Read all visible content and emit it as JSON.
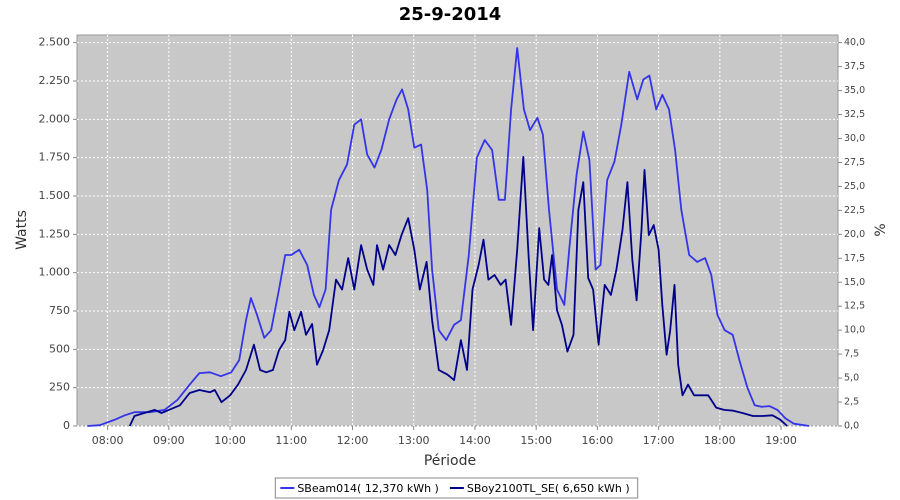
{
  "chart_data": {
    "type": "line",
    "title": "25-9-2014",
    "x_label": "Période",
    "y_label": "Watts",
    "y2_label": "%",
    "xlim": [
      7.5,
      19.93
    ],
    "xticks": [
      {
        "value": 8,
        "label": "08:00"
      },
      {
        "value": 9,
        "label": "09:00"
      },
      {
        "value": 10,
        "label": "10:00"
      },
      {
        "value": 11,
        "label": "11:00"
      },
      {
        "value": 12,
        "label": "12:00"
      },
      {
        "value": 13,
        "label": "13:00"
      },
      {
        "value": 14,
        "label": "14:00"
      },
      {
        "value": 15,
        "label": "15:00"
      },
      {
        "value": 16,
        "label": "16:00"
      },
      {
        "value": 17,
        "label": "17:00"
      },
      {
        "value": 18,
        "label": "18:00"
      },
      {
        "value": 19,
        "label": "19:00"
      }
    ],
    "ylim": [
      0,
      2550
    ],
    "yticks": [
      0,
      250,
      500,
      750,
      {
        "value": 1000,
        "label": "1.000"
      },
      {
        "value": 1250,
        "label": "1.250"
      },
      {
        "value": 1500,
        "label": "1.500"
      },
      {
        "value": 1750,
        "label": "1.750"
      },
      {
        "value": 2000,
        "label": "2.000"
      },
      {
        "value": 2250,
        "label": "2.250"
      },
      {
        "value": 2500,
        "label": "2.500"
      }
    ],
    "y2lim": [
      0,
      40.8
    ],
    "y2ticks": [
      {
        "value": 0,
        "label": "0,0"
      },
      {
        "value": 2.5,
        "label": "2,5"
      },
      {
        "value": 5,
        "label": "5,0"
      },
      {
        "value": 7.5,
        "label": "7,5"
      },
      {
        "value": 10,
        "label": "10,0"
      },
      {
        "value": 12.5,
        "label": "12,5"
      },
      {
        "value": 15,
        "label": "15,0"
      },
      {
        "value": 17.5,
        "label": "17,5"
      },
      {
        "value": 20,
        "label": "20,0"
      },
      {
        "value": 22.5,
        "label": "22,5"
      },
      {
        "value": 25,
        "label": "25,0"
      },
      {
        "value": 27.5,
        "label": "27,5"
      },
      {
        "value": 30,
        "label": "30,0"
      },
      {
        "value": 32.5,
        "label": "32,5"
      },
      {
        "value": 35,
        "label": "35,0"
      },
      {
        "value": 37.5,
        "label": "37,5"
      },
      {
        "value": 40,
        "label": "40,0"
      }
    ],
    "grid": true,
    "legend": "bottom",
    "series": [
      {
        "name": "SBeam014( 12,370 kWh )",
        "color": "#3434e8",
        "x": [
          7.67,
          7.87,
          8.11,
          8.28,
          8.44,
          8.69,
          8.93,
          9.14,
          9.34,
          9.5,
          9.67,
          9.85,
          10.02,
          10.15,
          10.26,
          10.34,
          10.44,
          10.56,
          10.67,
          10.8,
          10.9,
          11.0,
          11.13,
          11.26,
          11.37,
          11.46,
          11.56,
          11.65,
          11.78,
          11.91,
          12.03,
          12.14,
          12.24,
          12.36,
          12.47,
          12.6,
          12.72,
          12.81,
          12.91,
          13.01,
          13.12,
          13.22,
          13.3,
          13.41,
          13.53,
          13.66,
          13.77,
          13.9,
          14.03,
          14.16,
          14.28,
          14.39,
          14.49,
          14.59,
          14.69,
          14.8,
          14.9,
          15.02,
          15.11,
          15.21,
          15.34,
          15.46,
          15.54,
          15.66,
          15.77,
          15.87,
          15.97,
          16.05,
          16.16,
          16.28,
          16.39,
          16.52,
          16.65,
          16.75,
          16.85,
          16.96,
          17.06,
          17.17,
          17.27,
          17.37,
          17.5,
          17.63,
          17.76,
          17.86,
          17.96,
          18.08,
          18.21,
          18.32,
          18.45,
          18.57,
          18.68,
          18.81,
          18.94,
          19.07,
          19.21,
          19.46
        ],
        "values": [
          0,
          5,
          40,
          70,
          90,
          90,
          105,
          170,
          270,
          345,
          350,
          325,
          350,
          430,
          690,
          835,
          725,
          575,
          625,
          890,
          1115,
          1115,
          1150,
          1050,
          855,
          775,
          890,
          1410,
          1605,
          1705,
          1965,
          2000,
          1770,
          1685,
          1800,
          2000,
          2130,
          2195,
          2065,
          1815,
          1835,
          1540,
          1020,
          625,
          560,
          660,
          690,
          1115,
          1750,
          1865,
          1800,
          1475,
          1475,
          2065,
          2465,
          2065,
          1930,
          2010,
          1900,
          1410,
          890,
          790,
          1150,
          1640,
          1920,
          1735,
          1020,
          1050,
          1605,
          1725,
          1965,
          2310,
          2130,
          2260,
          2285,
          2065,
          2160,
          2065,
          1800,
          1410,
          1115,
          1070,
          1095,
          985,
          725,
          625,
          595,
          430,
          250,
          135,
          125,
          130,
          105,
          50,
          15,
          0
        ]
      },
      {
        "name": "SBoy2100TL_SE( 6,650 kWh )",
        "color": "#00008b",
        "x": [
          8.36,
          8.44,
          8.6,
          8.77,
          8.88,
          9.0,
          9.18,
          9.34,
          9.5,
          9.67,
          9.75,
          9.86,
          10.0,
          10.13,
          10.26,
          10.39,
          10.49,
          10.59,
          10.7,
          10.8,
          10.9,
          10.97,
          11.05,
          11.16,
          11.24,
          11.34,
          11.42,
          11.52,
          11.62,
          11.73,
          11.83,
          11.93,
          12.03,
          12.14,
          12.24,
          12.34,
          12.4,
          12.5,
          12.6,
          12.7,
          12.8,
          12.91,
          13.01,
          13.1,
          13.21,
          13.3,
          13.41,
          13.55,
          13.66,
          13.77,
          13.87,
          13.96,
          14.06,
          14.14,
          14.22,
          14.32,
          14.42,
          14.5,
          14.59,
          14.69,
          14.79,
          14.88,
          14.95,
          15.05,
          15.13,
          15.2,
          15.26,
          15.34,
          15.42,
          15.51,
          15.61,
          15.69,
          15.77,
          15.85,
          15.93,
          16.02,
          16.12,
          16.22,
          16.31,
          16.41,
          16.49,
          16.57,
          16.64,
          16.72,
          16.77,
          16.84,
          16.92,
          17.0,
          17.06,
          17.13,
          17.19,
          17.26,
          17.32,
          17.39,
          17.48,
          17.58,
          17.7,
          17.81,
          17.94,
          18.07,
          18.22,
          18.37,
          18.54,
          18.7,
          18.86,
          18.99,
          19.1
        ],
        "values": [
          0,
          65,
          85,
          105,
          85,
          105,
          135,
          215,
          235,
          220,
          235,
          155,
          200,
          270,
          365,
          530,
          365,
          350,
          365,
          495,
          560,
          745,
          625,
          745,
          595,
          665,
          400,
          495,
          625,
          955,
          890,
          1095,
          890,
          1180,
          1020,
          920,
          1180,
          1020,
          1180,
          1115,
          1245,
          1355,
          1150,
          890,
          1070,
          690,
          365,
          335,
          300,
          560,
          365,
          890,
          1050,
          1215,
          955,
          985,
          920,
          955,
          660,
          1150,
          1755,
          1085,
          625,
          1290,
          955,
          920,
          1115,
          755,
          660,
          485,
          595,
          1410,
          1590,
          965,
          890,
          530,
          920,
          855,
          1020,
          1280,
          1590,
          1085,
          820,
          1280,
          1670,
          1245,
          1310,
          1150,
          790,
          465,
          625,
          920,
          400,
          200,
          270,
          200,
          200,
          200,
          120,
          105,
          100,
          85,
          65,
          65,
          70,
          40,
          0
        ]
      }
    ]
  }
}
